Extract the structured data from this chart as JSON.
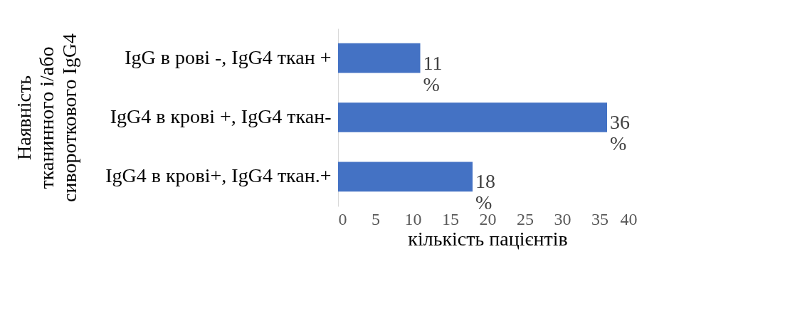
{
  "chart_data": {
    "type": "bar",
    "orientation": "horizontal",
    "categories": [
      "IgG в рові -, IgG4 ткан +",
      "IgG4 в крові +, IgG4 ткан-",
      "IgG4 в крові+, IgG4 ткан.+"
    ],
    "values": [
      11,
      36,
      18
    ],
    "color": "#4472c4",
    "value_labels": [
      "11 %",
      "36 %",
      "18 %"
    ],
    "xlim": [
      0,
      40
    ],
    "xticks": [
      0,
      5,
      10,
      15,
      20,
      25,
      30,
      35,
      40
    ],
    "xlabel": "кількість пацієнтів",
    "ylabel": "Наявність\nтканинного і/або\nсивороткового IgG4",
    "grid": false
  }
}
